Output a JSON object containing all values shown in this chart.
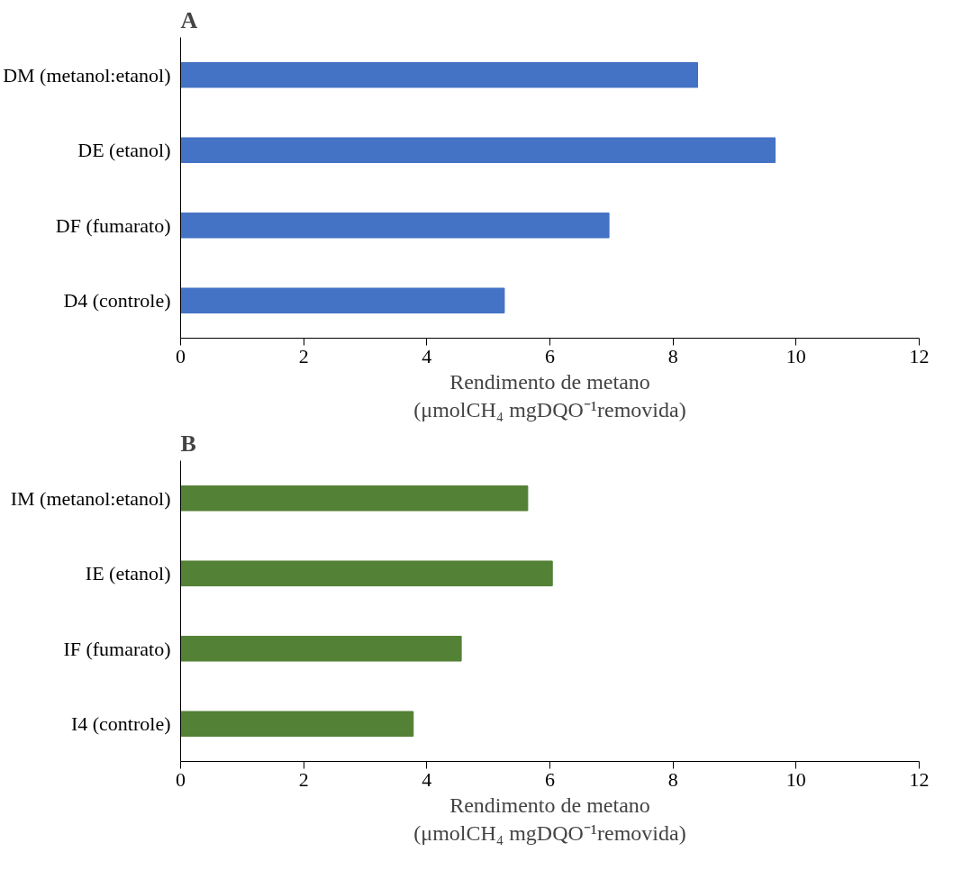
{
  "chart_data": [
    {
      "type": "bar",
      "orientation": "horizontal",
      "title": "A",
      "categories": [
        "DM (metanol:etanol)",
        "DE (etanol)",
        "DF (fumarato)",
        "D4 (controle)"
      ],
      "values": [
        8.4,
        9.66,
        6.96,
        5.26
      ],
      "color": "#4472c4",
      "xlim": [
        0,
        12
      ],
      "xticks": [
        0,
        2,
        4,
        6,
        8,
        10,
        12
      ],
      "xlabel": "Rendimento de metano\n(μmolCH₄ mgDQO⁻¹removida)",
      "grid": false
    },
    {
      "type": "bar",
      "orientation": "horizontal",
      "title": "B",
      "categories": [
        "IM (metanol:etanol)",
        "IE (etanol)",
        "IF (fumarato)",
        "I4 (controle)"
      ],
      "values": [
        5.64,
        6.04,
        4.56,
        3.78
      ],
      "color": "#538135",
      "xlim": [
        0,
        12
      ],
      "xticks": [
        0,
        2,
        4,
        6,
        8,
        10,
        12
      ],
      "xlabel": "Rendimento de metano\n(μmolCH₄ mgDQO⁻¹removida)",
      "grid": false
    }
  ]
}
